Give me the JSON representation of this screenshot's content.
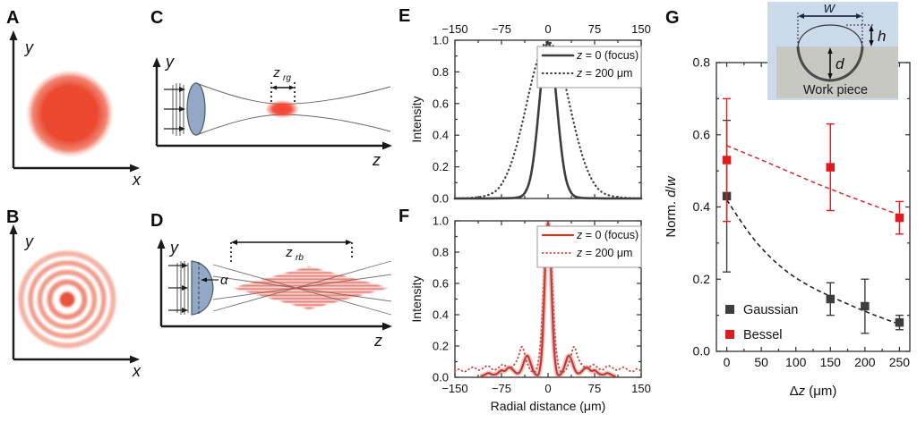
{
  "panel_letters": {
    "a": "A",
    "b": "B",
    "c": "C",
    "d": "D",
    "e": "E",
    "f": "F",
    "g": "G"
  },
  "diagram_labels": {
    "a": {
      "x": "x",
      "y": "y"
    },
    "b": {
      "x": "x",
      "y": "y"
    },
    "c": {
      "y": "y",
      "z": "z",
      "rayleigh": "z",
      "rayleigh_sub": "rg"
    },
    "d": {
      "y": "y",
      "z": "z",
      "rayleigh": "z",
      "rayleigh_sub": "rb",
      "alpha": "α"
    }
  },
  "inset": {
    "w": "w",
    "h": "h",
    "d": "d",
    "caption": "Work piece"
  },
  "colors": {
    "beam_red": "#ed4a31",
    "curve_dark": "#3d3d3d",
    "curve_red": "#bf3a31",
    "point_red": "#e01b1b",
    "lens_fill": "#93a8c5",
    "lens_stroke": "#47586e",
    "inset_bg": "#cbdaeb",
    "workpiece_gray": "#c7c8c2"
  },
  "chart_data": [
    {
      "panel": "E",
      "type": "line",
      "ylabel_parts": [
        {
          "t": "Intensity"
        }
      ],
      "xlabel_parts": [],
      "xlim": [
        -150,
        150
      ],
      "ylim": [
        0,
        1
      ],
      "x_ticks": [
        -150,
        -75,
        0,
        75,
        150
      ],
      "y_ticks": [
        0,
        0.2,
        0.4,
        0.6,
        0.8,
        1
      ],
      "x_axis": "top",
      "grid": false,
      "legend_position": "upper-right",
      "series": [
        {
          "label_parts": [
            {
              "t": "z",
              "i": true
            },
            {
              "t": " = 0 (focus)"
            }
          ],
          "style": "solid",
          "color": "#3d3d3d",
          "width": 2.6,
          "points": [
            [
              -150,
              0
            ],
            [
              -100,
              0
            ],
            [
              -60,
              0.002
            ],
            [
              -50,
              0.005
            ],
            [
              -45,
              0.01
            ],
            [
              -40,
              0.02
            ],
            [
              -35,
              0.05
            ],
            [
              -30,
              0.1
            ],
            [
              -25,
              0.2
            ],
            [
              -20,
              0.36
            ],
            [
              -15,
              0.56
            ],
            [
              -10,
              0.78
            ],
            [
              -5,
              0.94
            ],
            [
              0,
              1
            ],
            [
              5,
              0.94
            ],
            [
              10,
              0.78
            ],
            [
              15,
              0.56
            ],
            [
              20,
              0.36
            ],
            [
              25,
              0.2
            ],
            [
              30,
              0.1
            ],
            [
              35,
              0.05
            ],
            [
              40,
              0.02
            ],
            [
              45,
              0.01
            ],
            [
              50,
              0.005
            ],
            [
              60,
              0.002
            ],
            [
              100,
              0
            ],
            [
              150,
              0
            ]
          ]
        },
        {
          "label_parts": [
            {
              "t": "z",
              "i": true
            },
            {
              "t": " = 200 μm"
            }
          ],
          "style": "dotted",
          "color": "#3d3d3d",
          "width": 2.2,
          "points": [
            [
              -150,
              0.001
            ],
            [
              -135,
              0.002
            ],
            [
              -120,
              0.005
            ],
            [
              -105,
              0.012
            ],
            [
              -90,
              0.03
            ],
            [
              -80,
              0.06
            ],
            [
              -70,
              0.12
            ],
            [
              -60,
              0.21
            ],
            [
              -50,
              0.34
            ],
            [
              -40,
              0.5
            ],
            [
              -30,
              0.68
            ],
            [
              -20,
              0.84
            ],
            [
              -10,
              0.96
            ],
            [
              0,
              1
            ],
            [
              10,
              0.96
            ],
            [
              20,
              0.84
            ],
            [
              30,
              0.68
            ],
            [
              40,
              0.5
            ],
            [
              50,
              0.34
            ],
            [
              60,
              0.21
            ],
            [
              70,
              0.12
            ],
            [
              80,
              0.06
            ],
            [
              90,
              0.03
            ],
            [
              105,
              0.012
            ],
            [
              120,
              0.005
            ],
            [
              135,
              0.002
            ],
            [
              150,
              0.001
            ]
          ]
        }
      ]
    },
    {
      "panel": "F",
      "type": "line",
      "ylabel_parts": [
        {
          "t": "Intensity"
        }
      ],
      "xlabel_parts": [
        {
          "t": "Radial distance (μm)"
        }
      ],
      "xlim": [
        -150,
        150
      ],
      "ylim": [
        0,
        1
      ],
      "x_ticks": [
        -150,
        -75,
        0,
        75,
        150
      ],
      "y_ticks": [
        0,
        0.2,
        0.4,
        0.6,
        0.8,
        1
      ],
      "x_axis": "bottom",
      "grid": false,
      "legend_position": "upper-right",
      "series": [
        {
          "label_parts": [
            {
              "t": "z",
              "i": true
            },
            {
              "t": " = 0 (focus)"
            }
          ],
          "style": "solid",
          "color": "#bf3a31",
          "width": 2.2,
          "glow": true,
          "points": [
            [
              -108,
              0.005
            ],
            [
              -100,
              0.02
            ],
            [
              -95,
              0.03
            ],
            [
              -90,
              0.015
            ],
            [
              -82,
              0.02
            ],
            [
              -75,
              0.05
            ],
            [
              -70,
              0.035
            ],
            [
              -63,
              0.07
            ],
            [
              -57,
              0.05
            ],
            [
              -50,
              0.02
            ],
            [
              -44,
              0.035
            ],
            [
              -38,
              0.11
            ],
            [
              -33,
              0.15
            ],
            [
              -28,
              0.09
            ],
            [
              -23,
              0.03
            ],
            [
              -18,
              0.01
            ],
            [
              -14,
              0.02
            ],
            [
              -10,
              0.15
            ],
            [
              -7,
              0.42
            ],
            [
              -4,
              0.78
            ],
            [
              -2,
              0.94
            ],
            [
              0,
              1
            ],
            [
              2,
              0.94
            ],
            [
              4,
              0.78
            ],
            [
              7,
              0.42
            ],
            [
              10,
              0.15
            ],
            [
              14,
              0.02
            ],
            [
              18,
              0.01
            ],
            [
              23,
              0.03
            ],
            [
              28,
              0.09
            ],
            [
              33,
              0.15
            ],
            [
              38,
              0.11
            ],
            [
              44,
              0.035
            ],
            [
              50,
              0.02
            ],
            [
              57,
              0.05
            ],
            [
              63,
              0.07
            ],
            [
              70,
              0.035
            ],
            [
              75,
              0.05
            ],
            [
              82,
              0.02
            ],
            [
              90,
              0.015
            ],
            [
              95,
              0.03
            ],
            [
              100,
              0.02
            ],
            [
              108,
              0.005
            ]
          ]
        },
        {
          "label_parts": [
            {
              "t": "z",
              "i": true
            },
            {
              "t": " = 200 μm"
            }
          ],
          "style": "dotted",
          "color": "#c9534b",
          "width": 2,
          "points": [
            [
              -150,
              0.04
            ],
            [
              -143,
              0.06
            ],
            [
              -136,
              0.03
            ],
            [
              -128,
              0.05
            ],
            [
              -120,
              0.07
            ],
            [
              -112,
              0.04
            ],
            [
              -104,
              0.06
            ],
            [
              -96,
              0.08
            ],
            [
              -88,
              0.04
            ],
            [
              -80,
              0.06
            ],
            [
              -72,
              0.09
            ],
            [
              -64,
              0.05
            ],
            [
              -56,
              0.07
            ],
            [
              -48,
              0.12
            ],
            [
              -42,
              0.22
            ],
            [
              -36,
              0.12
            ],
            [
              -30,
              0.05
            ],
            [
              -24,
              0.03
            ],
            [
              -18,
              0.04
            ],
            [
              -12,
              0.2
            ],
            [
              -8,
              0.5
            ],
            [
              -4,
              0.85
            ],
            [
              0,
              0.97
            ],
            [
              4,
              0.85
            ],
            [
              8,
              0.5
            ],
            [
              12,
              0.2
            ],
            [
              18,
              0.04
            ],
            [
              24,
              0.03
            ],
            [
              30,
              0.05
            ],
            [
              36,
              0.12
            ],
            [
              42,
              0.22
            ],
            [
              48,
              0.12
            ],
            [
              56,
              0.07
            ],
            [
              64,
              0.05
            ],
            [
              72,
              0.09
            ],
            [
              80,
              0.06
            ],
            [
              88,
              0.04
            ],
            [
              96,
              0.08
            ],
            [
              104,
              0.06
            ],
            [
              112,
              0.04
            ],
            [
              120,
              0.07
            ],
            [
              128,
              0.05
            ],
            [
              136,
              0.03
            ],
            [
              143,
              0.06
            ],
            [
              150,
              0.04
            ]
          ]
        }
      ]
    },
    {
      "panel": "G",
      "type": "scatter",
      "ylabel_parts": [
        {
          "t": "Norm. "
        },
        {
          "t": "d",
          "i": true
        },
        {
          "t": "/"
        },
        {
          "t": "w",
          "i": true
        }
      ],
      "xlabel_parts": [
        {
          "t": "Δ"
        },
        {
          "t": "z",
          "i": true
        },
        {
          "t": " (μm)"
        }
      ],
      "xlim": [
        -15,
        265
      ],
      "ylim": [
        0,
        0.8
      ],
      "x_ticks": [
        0,
        50,
        100,
        150,
        200,
        250
      ],
      "y_ticks": [
        0,
        0.2,
        0.4,
        0.6,
        0.8
      ],
      "x_axis": "bottom",
      "grid": false,
      "legend_position": "lower-left",
      "series": [
        {
          "name": "Gaussian",
          "color": "#3d3d3d",
          "marker": "square",
          "points": [
            {
              "x": 0,
              "y": 0.43,
              "err": 0.21
            },
            {
              "x": 150,
              "y": 0.145,
              "err": 0.045
            },
            {
              "x": 200,
              "y": 0.125,
              "err": 0.075
            },
            {
              "x": 250,
              "y": 0.08,
              "err": 0.02
            }
          ],
          "fit": [
            [
              0,
              0.42
            ],
            [
              30,
              0.33
            ],
            [
              60,
              0.265
            ],
            [
              90,
              0.215
            ],
            [
              120,
              0.18
            ],
            [
              150,
              0.152
            ],
            [
              180,
              0.127
            ],
            [
              210,
              0.103
            ],
            [
              250,
              0.075
            ]
          ],
          "fit_color": "#1a1a1a"
        },
        {
          "name": "Bessel",
          "color": "#e01b1b",
          "marker": "square",
          "points": [
            {
              "x": 0,
              "y": 0.53,
              "err": 0.17
            },
            {
              "x": 150,
              "y": 0.51,
              "err": 0.12
            },
            {
              "x": 250,
              "y": 0.37,
              "err": 0.045
            }
          ],
          "fit": [
            [
              0,
              0.57
            ],
            [
              60,
              0.523
            ],
            [
              125,
              0.468
            ],
            [
              190,
              0.42
            ],
            [
              250,
              0.378
            ]
          ],
          "fit_color": "#d62b2b"
        }
      ]
    }
  ]
}
